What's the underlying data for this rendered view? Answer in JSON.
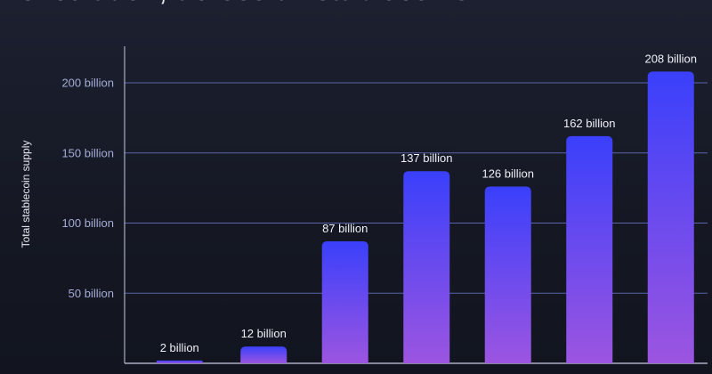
{
  "headline": "circulation, across all stablecoins.",
  "colors": {
    "bar_top": "#3a40fb",
    "bar_bottom": "#9c55e0",
    "grid": "#5a64a8",
    "axis": "#c7cbe0",
    "tick_label": "#a5acd6",
    "data_label": "#eef0f6"
  },
  "chart_data": {
    "type": "bar",
    "ylabel": "Total stablecoin supply",
    "xlabel": "",
    "ylim": [
      0,
      215
    ],
    "yticks": [
      50,
      100,
      150,
      200
    ],
    "ytick_labels": [
      "50 billion",
      "100 billion",
      "150 billion",
      "200 billion"
    ],
    "values": [
      2,
      12,
      87,
      137,
      126,
      162,
      208
    ],
    "data_labels": [
      "2 billion",
      "12 billion",
      "87 billion",
      "137 billion",
      "126 billion",
      "162 billion",
      "208 billion"
    ],
    "grid": "horizontal",
    "legend": "none"
  }
}
